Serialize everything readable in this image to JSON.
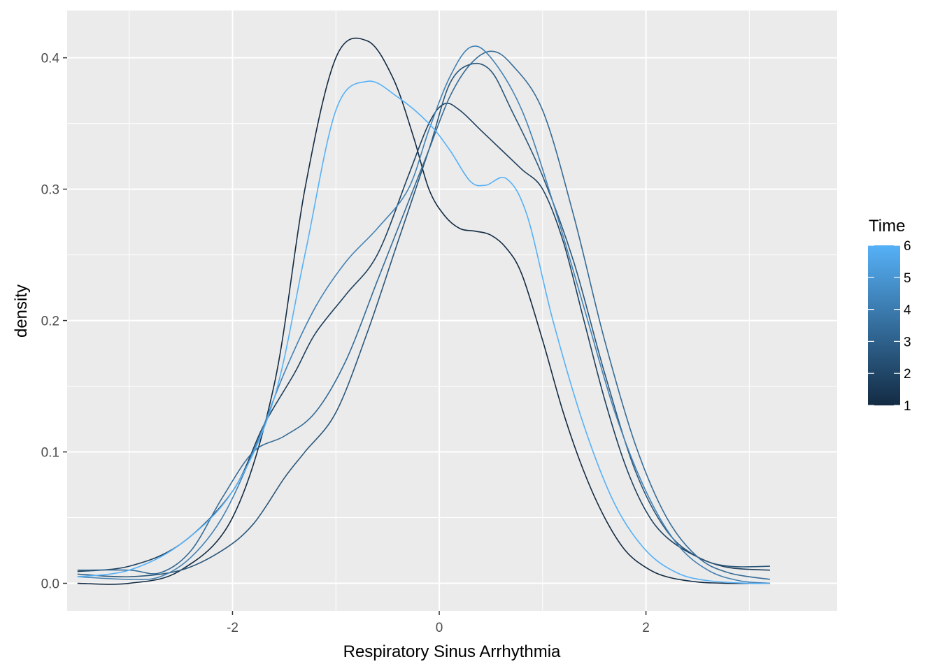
{
  "chart_data": {
    "type": "line",
    "xlabel": "Respiratory Sinus Arrhythmia",
    "ylabel": "density",
    "xlim": [
      -3.6,
      3.85
    ],
    "ylim": [
      -0.021,
      0.436
    ],
    "x_ticks": [
      -2,
      0,
      2
    ],
    "x_tick_labels": [
      "-2",
      "0",
      "2"
    ],
    "x_minor_ticks": [
      -3,
      -1,
      1,
      3
    ],
    "y_ticks": [
      0.0,
      0.1,
      0.2,
      0.3,
      0.4
    ],
    "y_tick_labels": [
      "0.0",
      "0.1",
      "0.2",
      "0.3",
      "0.4"
    ],
    "y_minor_ticks": [
      0.05,
      0.15,
      0.25,
      0.35
    ],
    "grid": true,
    "legend": {
      "title": "Time",
      "position": "right",
      "type": "colorbar",
      "low": 1,
      "high": 6,
      "ticks": [
        1,
        2,
        3,
        4,
        5,
        6
      ],
      "tick_labels": [
        "1",
        "2",
        "3",
        "4",
        "5",
        "6"
      ],
      "low_color": "#132B43",
      "high_color": "#56B1F7"
    },
    "series": [
      {
        "time": 1,
        "color": "#132B43",
        "x": [
          -3.5,
          -3.0,
          -2.5,
          -2.0,
          -1.6,
          -1.3,
          -1.0,
          -0.7,
          -0.45,
          -0.25,
          -0.1,
          0.05,
          0.2,
          0.35,
          0.5,
          0.65,
          0.8,
          1.0,
          1.2,
          1.4,
          1.6,
          1.8,
          2.0,
          2.2,
          2.5,
          2.8,
          3.2
        ],
        "y": [
          0.0,
          0.0,
          0.01,
          0.05,
          0.15,
          0.3,
          0.4,
          0.413,
          0.385,
          0.34,
          0.3,
          0.28,
          0.27,
          0.268,
          0.265,
          0.255,
          0.235,
          0.185,
          0.13,
          0.085,
          0.05,
          0.025,
          0.012,
          0.005,
          0.001,
          0.0,
          0.0
        ]
      },
      {
        "time": 2,
        "color": "#1E405E",
        "x": [
          -3.5,
          -3.0,
          -2.5,
          -2.0,
          -1.7,
          -1.4,
          -1.2,
          -0.9,
          -0.6,
          -0.3,
          -0.1,
          0.05,
          0.2,
          0.4,
          0.6,
          0.8,
          1.0,
          1.2,
          1.4,
          1.6,
          1.8,
          2.0,
          2.2,
          2.5,
          2.8,
          3.2
        ],
        "y": [
          0.009,
          0.013,
          0.03,
          0.07,
          0.12,
          0.16,
          0.19,
          0.22,
          0.25,
          0.31,
          0.35,
          0.365,
          0.36,
          0.345,
          0.33,
          0.315,
          0.3,
          0.26,
          0.2,
          0.14,
          0.09,
          0.055,
          0.035,
          0.02,
          0.012,
          0.01
        ]
      },
      {
        "time": 3,
        "color": "#2A5679",
        "x": [
          -3.5,
          -3.0,
          -2.5,
          -2.1,
          -1.8,
          -1.5,
          -1.3,
          -1.0,
          -0.7,
          -0.4,
          -0.1,
          0.1,
          0.3,
          0.5,
          0.7,
          1.0,
          1.3,
          1.6,
          1.9,
          2.2,
          2.5,
          2.8,
          3.2
        ],
        "y": [
          0.007,
          0.005,
          0.01,
          0.025,
          0.045,
          0.08,
          0.1,
          0.13,
          0.19,
          0.26,
          0.33,
          0.38,
          0.395,
          0.39,
          0.36,
          0.31,
          0.245,
          0.16,
          0.085,
          0.04,
          0.02,
          0.013,
          0.013
        ]
      },
      {
        "time": 4,
        "color": "#366B95",
        "x": [
          -3.5,
          -3.0,
          -2.7,
          -2.4,
          -2.1,
          -1.8,
          -1.5,
          -1.2,
          -0.9,
          -0.6,
          -0.3,
          -0.1,
          0.1,
          0.3,
          0.5,
          0.7,
          1.0,
          1.3,
          1.6,
          1.9,
          2.2,
          2.5,
          2.8,
          3.2
        ],
        "y": [
          0.01,
          0.01,
          0.008,
          0.025,
          0.065,
          0.1,
          0.112,
          0.13,
          0.17,
          0.23,
          0.29,
          0.33,
          0.37,
          0.395,
          0.405,
          0.395,
          0.36,
          0.28,
          0.185,
          0.105,
          0.05,
          0.02,
          0.008,
          0.003
        ]
      },
      {
        "time": 5,
        "color": "#4381B3",
        "x": [
          -3.5,
          -3.0,
          -2.7,
          -2.4,
          -2.1,
          -1.8,
          -1.5,
          -1.2,
          -0.9,
          -0.6,
          -0.3,
          -0.1,
          0.1,
          0.3,
          0.5,
          0.8,
          1.1,
          1.4,
          1.7,
          2.0,
          2.3,
          2.6,
          2.9,
          3.2
        ],
        "y": [
          0.005,
          0.003,
          0.005,
          0.02,
          0.05,
          0.1,
          0.16,
          0.21,
          0.245,
          0.27,
          0.3,
          0.345,
          0.385,
          0.408,
          0.4,
          0.36,
          0.29,
          0.21,
          0.13,
          0.07,
          0.03,
          0.01,
          0.002,
          0.0
        ]
      },
      {
        "time": 6,
        "color": "#56B1F7",
        "x": [
          -3.5,
          -3.0,
          -2.5,
          -2.0,
          -1.6,
          -1.3,
          -1.0,
          -0.7,
          -0.4,
          -0.1,
          0.1,
          0.3,
          0.45,
          0.65,
          0.85,
          1.1,
          1.4,
          1.7,
          2.0,
          2.3,
          2.6,
          3.0,
          3.2
        ],
        "y": [
          0.005,
          0.01,
          0.03,
          0.07,
          0.14,
          0.25,
          0.36,
          0.382,
          0.37,
          0.35,
          0.33,
          0.306,
          0.303,
          0.308,
          0.28,
          0.2,
          0.12,
          0.06,
          0.025,
          0.008,
          0.002,
          0.0,
          0.0
        ]
      }
    ]
  }
}
